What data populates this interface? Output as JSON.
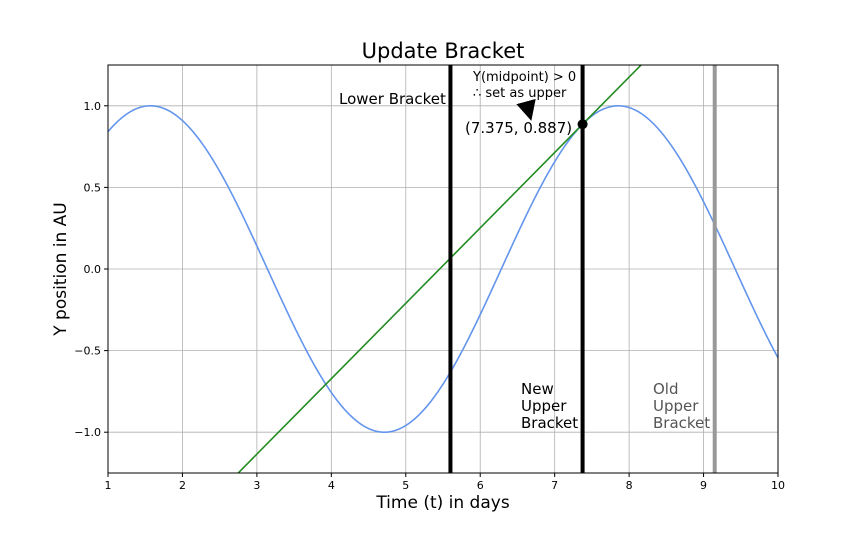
{
  "chart_data": {
    "type": "line",
    "title": "Update Bracket",
    "xlabel": "Time (t) in days",
    "ylabel": "Y position in AU",
    "xlim": [
      1,
      10
    ],
    "ylim": [
      -1.25,
      1.25
    ],
    "grid": true,
    "x_ticks": [
      "1",
      "2",
      "3",
      "4",
      "5",
      "6",
      "7",
      "8",
      "9",
      "10"
    ],
    "y_ticks": [
      "1.0",
      "0.5",
      "0.0",
      "−0.5",
      "−1.0"
    ],
    "x_tick_values": [
      1,
      2,
      3,
      4,
      5,
      6,
      7,
      8,
      9,
      10
    ],
    "y_tick_values": [
      1.0,
      0.5,
      0.0,
      -0.5,
      -1.0
    ],
    "series": [
      {
        "function": "sin",
        "color": "#6495ed"
      },
      {
        "function": "tangent_line",
        "point": [
          7.375,
          0.887
        ],
        "slope": 0.462,
        "x_range": [
          2.6,
          8.3
        ],
        "color": "#228b22"
      }
    ],
    "vlines": [
      {
        "x": 5.6,
        "color": "#000000",
        "role": "lower"
      },
      {
        "x": 7.375,
        "color": "#000000",
        "role": "new-upper"
      },
      {
        "x": 9.15,
        "color": "#999999",
        "role": "old-upper"
      }
    ],
    "marked_point": {
      "x": 7.375,
      "y": 0.887,
      "label": "(7.375, 0.887)"
    },
    "annotations": {
      "lower_bracket": "Lower Bracket",
      "note_line1": "Y(midpoint) > 0",
      "note_line2": "∴ set as upper",
      "new_upper": [
        "New",
        "Upper",
        "Bracket"
      ],
      "old_upper": [
        "Old",
        "Upper",
        "Bracket"
      ]
    }
  }
}
